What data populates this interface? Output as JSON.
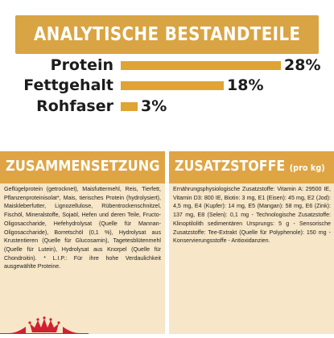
{
  "title": "ANALYTISCHE BESTANDTEILE",
  "nutrients": [
    {
      "label": "Protein",
      "value": "28%",
      "fraction": 0.28
    },
    {
      "label": "Fettgehalt",
      "value": "18%",
      "fraction": 0.18
    },
    {
      "label": "Rohfaser",
      "value": "3%",
      "fraction": 0.03
    }
  ],
  "composition": {
    "heading": "ZUSAMMENSETZUNG",
    "text": "Geflügelprotein (getrocknet), Maisfuttermehl, Reis, Tierfett, Pflanzenproteinisolat*, Mais, tierisches Protein (hydrolysiert), Maiskleberfutter, Lignozellulose, Rübentrockenschnitzel, Fischöl, Mineralstoffe, Sojaöl, Hefen und deren Teile, Fructo-Oligosaccharide, Hefehydrolysat (Quelle für Mannan-Oligosaccharide), Borretschöl (0,1 %), Hydrolysat aus Krustentieren (Quelle für Glucosamin), Tagetesblütenmehl (Quelle für Lutein), Hydrolysat aus Knorpel (Quelle für Chondroitin). * L.I.P.: Für ihre hohe Verdaulichkeit ausgewählte Proteine."
  },
  "additives": {
    "heading": "ZUSATZSTOFFE",
    "heading_suffix": "(pro kg)",
    "text": "Ernährungsphysiologische Zusatzstoffe: Vitamin A: 29500 IE, Vitamin D3: 800 IE, Biotin: 3 mg, E1 (Eisen): 45 mg, E2 (Jod): 4,5 mg, E4 (Kupfer): 14 mg, E5 (Mangan): 58 mg, E6 (Zink): 137 mg, E8 (Selen): 0,1 mg - Technologische Zusatzstoffe: Klinoptilolith sedimentären Ursprungs: 5 g - Sensorische Zusatzstoffe: Tee-Extrakt (Quelle für Polyphenole): 150 mg - Konservierungsstoffe - Antioxidanzien."
  },
  "colors": {
    "gold": "#dfa336",
    "panel": "#f7e6c7",
    "logo_red": "#d1202f"
  },
  "logo": "royal-canin-crown-logo"
}
